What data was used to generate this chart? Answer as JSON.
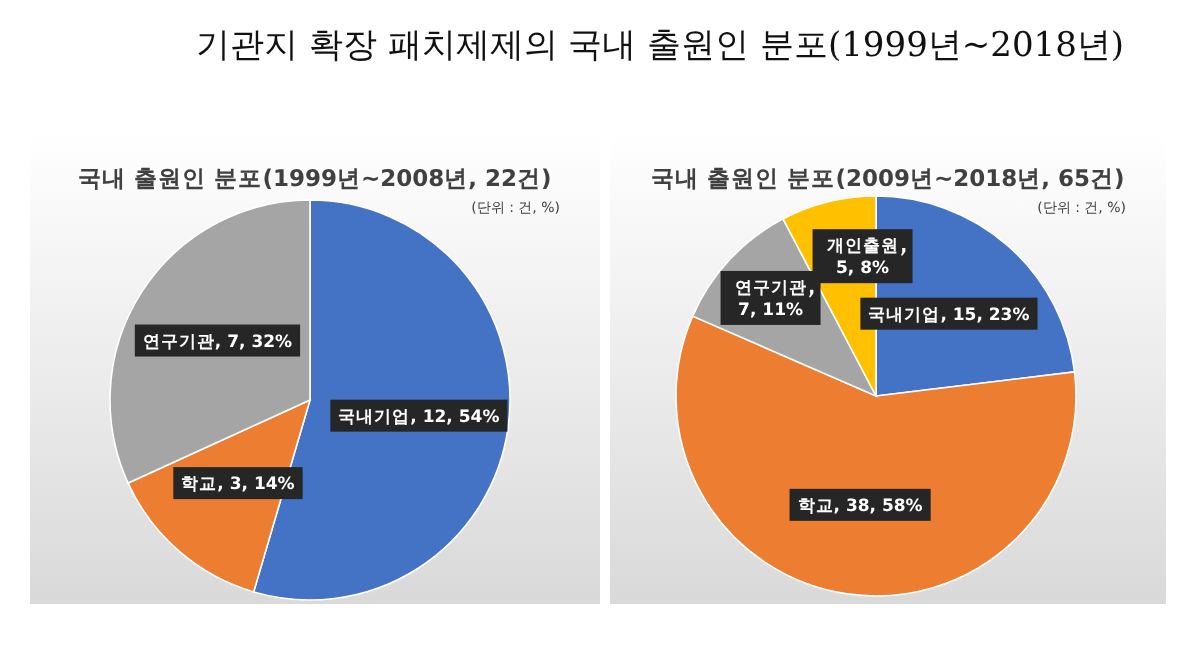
{
  "chart_data": [
    {
      "type": "other",
      "title": "기관지 확장 패치제제의 국내 출원인 분포(1999년~2018년)"
    },
    {
      "type": "pie",
      "title": "국내 출원인 분포(1999년~2008년, 22건)",
      "annotations": [
        "(단위 : 건, %)"
      ],
      "categories": [
        "국내기업",
        "학교",
        "연구기관"
      ],
      "values": [
        12,
        3,
        7
      ],
      "colors": [
        "#4472c4",
        "#ed7d31",
        "#a5a5a5"
      ],
      "value_labels": [
        "12, 54%",
        "3, 14%",
        "7, 32%"
      ]
    },
    {
      "type": "pie",
      "title": "국내 출원인 분포(2009년~2018년, 65건)",
      "annotations": [
        "(단위 : 건, %)"
      ],
      "categories": [
        "국내기업",
        "학교",
        "연구기관",
        "개인출원"
      ],
      "values": [
        15,
        38,
        7,
        5
      ],
      "colors": [
        "#4472c4",
        "#ed7d31",
        "#a5a5a5",
        "#ffc000"
      ],
      "value_labels": [
        "15, 23%",
        "38, 58%",
        "7, 11%",
        "5, 8%"
      ]
    }
  ]
}
